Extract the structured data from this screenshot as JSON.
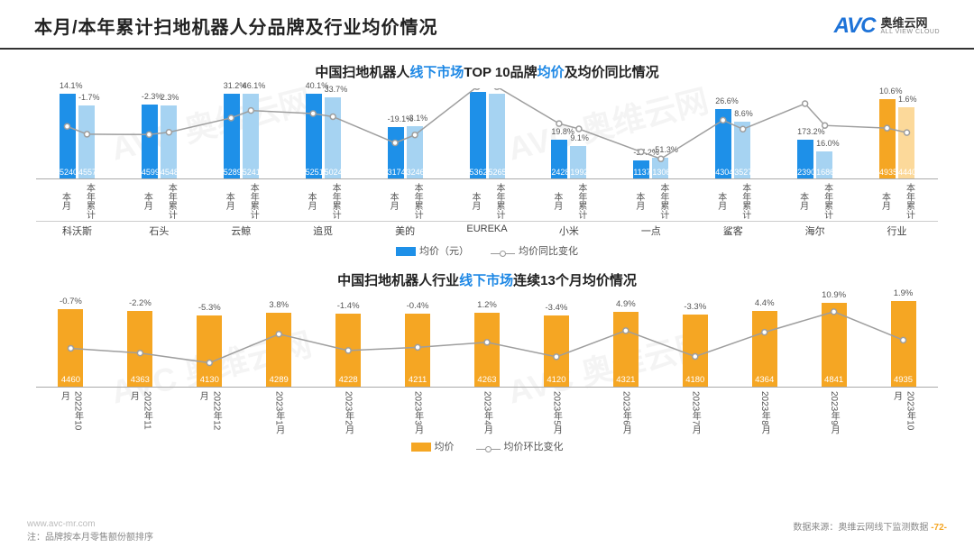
{
  "header": {
    "title": "本月/本年累计扫地机器人分品牌及行业均价情况",
    "logo_mark": "AVC",
    "logo_cn": "奥维云网",
    "logo_en": "ALL VIEW CLOUD"
  },
  "chart1": {
    "type": "bar+line",
    "title_pre": "中国扫地机器人",
    "title_hl": "线下市场",
    "title_mid": "TOP 10品牌",
    "title_hl2": "均价",
    "title_post": "及均价同比情况",
    "sub_labels": [
      "本月",
      "本年累计"
    ],
    "bar_color_month": "#1e90e8",
    "bar_color_ytd": "#a6d3f2",
    "highlight_month": "#f5a623",
    "highlight_ytd": "#fcd99a",
    "line_color": "#9e9e9e",
    "value_max": 5600,
    "groups": [
      {
        "brand": "科沃斯",
        "month_val": 5240,
        "month_pct": "14.1%",
        "ytd_val": 4557,
        "ytd_pct": "-1.7%",
        "hl": false
      },
      {
        "brand": "石头",
        "month_val": 4599,
        "month_pct": "-2.3%",
        "ytd_val": 4548,
        "ytd_pct": "2.3%",
        "hl": false
      },
      {
        "brand": "云鲸",
        "month_val": 5289,
        "month_pct": "31.2%",
        "ytd_val": 5241,
        "ytd_pct": "46.1%",
        "hl": false
      },
      {
        "brand": "追觅",
        "month_val": 5251,
        "month_pct": "40.1%",
        "ytd_val": 5024,
        "ytd_pct": "33.7%",
        "hl": false
      },
      {
        "brand": "美的",
        "month_val": 3174,
        "month_pct": "-19.1%",
        "ytd_val": 3246,
        "ytd_pct": "-3.1%",
        "hl": false
      },
      {
        "brand": "EUREKA",
        "month_val": 5362,
        "month_pct": "",
        "ytd_val": 5265,
        "ytd_pct": "",
        "hl": false
      },
      {
        "brand": "小米",
        "month_val": 2428,
        "month_pct": "19.8%",
        "ytd_val": 1992,
        "ytd_pct": "9.1%",
        "hl": false
      },
      {
        "brand": "一点",
        "month_val": 1137,
        "month_pct": "-37.2%",
        "ytd_val": 1306,
        "ytd_pct": "-51.3%",
        "hl": false
      },
      {
        "brand": "鲨客",
        "month_val": 4304,
        "month_pct": "26.6%",
        "ytd_val": 3527,
        "ytd_pct": "8.6%",
        "hl": false
      },
      {
        "brand": "海尔",
        "month_val": 2390,
        "month_pct": "173.2%",
        "ytd_val": 1686,
        "ytd_pct": "16.0%",
        "hl": false
      },
      {
        "brand": "行业",
        "month_val": 4935,
        "month_pct": "10.6%",
        "ytd_val": 4440,
        "ytd_pct": "1.6%",
        "hl": true
      }
    ],
    "legend_bar": "均价（元）",
    "legend_line": "均价同比变化"
  },
  "chart2": {
    "type": "bar+line",
    "title_pre": "中国扫地机器人行业",
    "title_hl": "线下市场",
    "title_post": "连续13个月均价情况",
    "bar_color": "#f5a623",
    "line_color": "#9e9e9e",
    "value_max": 5200,
    "points": [
      {
        "label": "2022年10月",
        "val": 4460,
        "pct": "-0.7%"
      },
      {
        "label": "2022年11月",
        "val": 4363,
        "pct": "-2.2%"
      },
      {
        "label": "2022年12月",
        "val": 4130,
        "pct": "-5.3%"
      },
      {
        "label": "2023年1月",
        "val": 4289,
        "pct": "3.8%"
      },
      {
        "label": "2023年2月",
        "val": 4228,
        "pct": "-1.4%"
      },
      {
        "label": "2023年3月",
        "val": 4211,
        "pct": "-0.4%"
      },
      {
        "label": "2023年4月",
        "val": 4263,
        "pct": "1.2%"
      },
      {
        "label": "2023年5月",
        "val": 4120,
        "pct": "-3.4%"
      },
      {
        "label": "2023年6月",
        "val": 4321,
        "pct": "4.9%"
      },
      {
        "label": "2023年7月",
        "val": 4180,
        "pct": "-3.3%"
      },
      {
        "label": "2023年8月",
        "val": 4364,
        "pct": "4.4%"
      },
      {
        "label": "2023年9月",
        "val": 4841,
        "pct": "10.9%"
      },
      {
        "label": "2023年10月",
        "val": 4935,
        "pct": "1.9%"
      }
    ],
    "legend_bar": "均价",
    "legend_line": "均价环比变化"
  },
  "footer": {
    "url": "www.avc-mr.com",
    "note": "注：品牌按本月零售额份额排序",
    "source_label": "数据来源：奥维云网线下监测数据",
    "page": "-72-"
  },
  "watermark": "AVC 奥维云网"
}
